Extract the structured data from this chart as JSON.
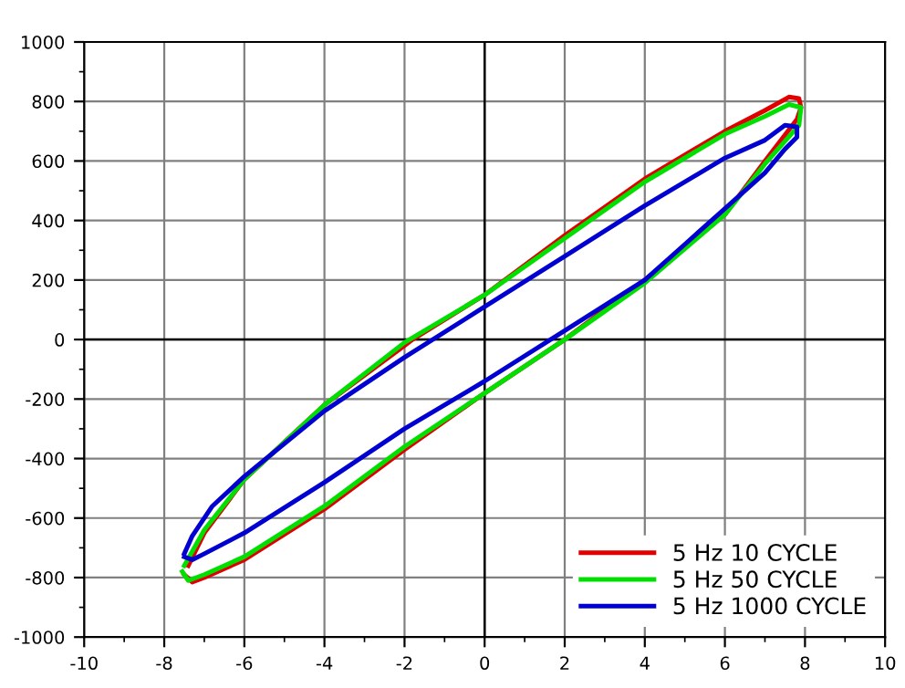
{
  "chart_data": {
    "type": "line",
    "xlim": [
      -10,
      10
    ],
    "ylim": [
      -1000,
      1000
    ],
    "xticks": [
      -10,
      -8,
      -6,
      -4,
      -2,
      0,
      2,
      4,
      6,
      8,
      10
    ],
    "yticks": [
      -1000,
      -800,
      -600,
      -400,
      -200,
      0,
      200,
      400,
      600,
      800,
      1000
    ],
    "grid": true,
    "legend": "bottom right",
    "marker": "none",
    "line_style": "solid",
    "series": [
      {
        "name": "5 Hz 10 CYCLE",
        "color": "#e00000",
        "x": [
          -7.4,
          -7.0,
          -6.0,
          -4.0,
          -2.0,
          -1.8,
          0,
          2,
          4,
          6,
          7.0,
          7.6,
          7.85,
          7.9,
          7.8,
          7.0,
          6.0,
          4.0,
          2.0,
          0,
          -2.0,
          -4.0,
          -6.0,
          -7.0,
          -7.3,
          -7.5
        ],
        "values": [
          -760,
          -650,
          -470,
          -220,
          -20,
          0,
          150,
          350,
          540,
          700,
          770,
          815,
          810,
          780,
          740,
          600,
          420,
          200,
          0,
          -180,
          -370,
          -570,
          -740,
          -800,
          -815,
          -790
        ]
      },
      {
        "name": "5 Hz 50 CYCLE",
        "color": "#00e000",
        "x": [
          -7.5,
          -7.0,
          -6.0,
          -4.0,
          -2.0,
          0,
          2,
          4,
          6,
          7.0,
          7.6,
          7.9,
          7.85,
          7.0,
          6.0,
          4.0,
          2.0,
          0,
          -2.0,
          -4.0,
          -6.0,
          -7.0,
          -7.4,
          -7.55
        ],
        "values": [
          -760,
          -640,
          -470,
          -220,
          -10,
          150,
          340,
          530,
          690,
          750,
          790,
          780,
          720,
          590,
          420,
          190,
          0,
          -180,
          -360,
          -560,
          -730,
          -790,
          -810,
          -780
        ]
      },
      {
        "name": "5 Hz 1000 CYCLE",
        "color": "#0000d0",
        "x": [
          -7.5,
          -7.3,
          -6.8,
          -6.0,
          -4.0,
          -2.0,
          0,
          2,
          4,
          6,
          7.0,
          7.5,
          7.8,
          7.8,
          7.5,
          7.0,
          6.0,
          5.0,
          4.0,
          2.0,
          0,
          -2.0,
          -4.0,
          -6.0,
          -7.0,
          -7.3,
          -7.5
        ],
        "values": [
          -720,
          -660,
          -560,
          -460,
          -240,
          -60,
          110,
          280,
          450,
          610,
          670,
          720,
          715,
          680,
          640,
          560,
          440,
          320,
          200,
          30,
          -140,
          -300,
          -480,
          -650,
          -720,
          -740,
          -730
        ]
      }
    ]
  }
}
